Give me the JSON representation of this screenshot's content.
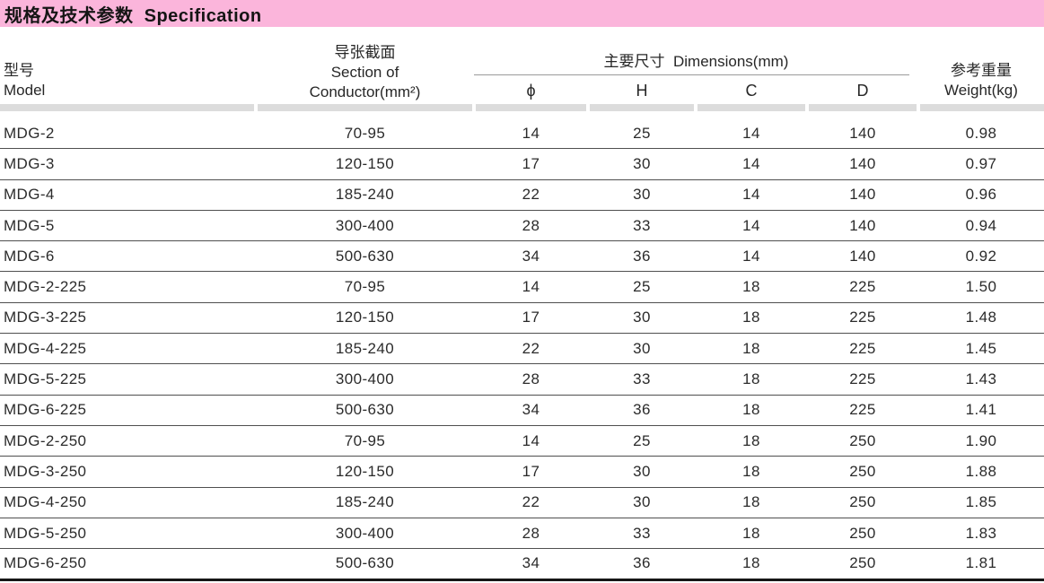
{
  "title_bar": {
    "text": "规格及技术参数  Specification"
  },
  "table": {
    "header": {
      "model": {
        "zh": "型号",
        "en": "Model"
      },
      "section": {
        "zh": "导张截面",
        "en_line1": "Section of",
        "en_line2": "Conductor(mm²)"
      },
      "dimensions": {
        "group_label": "主要尺寸  Dimensions(mm)",
        "sub": [
          "ϕ",
          "H",
          "C",
          "D"
        ]
      },
      "weight": {
        "zh": "参考重量",
        "en": "Weight(kg)"
      }
    },
    "rows": [
      {
        "model": "MDG-2",
        "section": "70-95",
        "phi": "14",
        "h": "25",
        "c": "14",
        "d": "140",
        "weight": "0.98"
      },
      {
        "model": "MDG-3",
        "section": "120-150",
        "phi": "17",
        "h": "30",
        "c": "14",
        "d": "140",
        "weight": "0.97"
      },
      {
        "model": "MDG-4",
        "section": "185-240",
        "phi": "22",
        "h": "30",
        "c": "14",
        "d": "140",
        "weight": "0.96"
      },
      {
        "model": "MDG-5",
        "section": "300-400",
        "phi": "28",
        "h": "33",
        "c": "14",
        "d": "140",
        "weight": "0.94"
      },
      {
        "model": "MDG-6",
        "section": "500-630",
        "phi": "34",
        "h": "36",
        "c": "14",
        "d": "140",
        "weight": "0.92"
      },
      {
        "model": "MDG-2-225",
        "section": "70-95",
        "phi": "14",
        "h": "25",
        "c": "18",
        "d": "225",
        "weight": "1.50"
      },
      {
        "model": "MDG-3-225",
        "section": "120-150",
        "phi": "17",
        "h": "30",
        "c": "18",
        "d": "225",
        "weight": "1.48"
      },
      {
        "model": "MDG-4-225",
        "section": "185-240",
        "phi": "22",
        "h": "30",
        "c": "18",
        "d": "225",
        "weight": "1.45"
      },
      {
        "model": "MDG-5-225",
        "section": "300-400",
        "phi": "28",
        "h": "33",
        "c": "18",
        "d": "225",
        "weight": "1.43"
      },
      {
        "model": "MDG-6-225",
        "section": "500-630",
        "phi": "34",
        "h": "36",
        "c": "18",
        "d": "225",
        "weight": "1.41"
      },
      {
        "model": "MDG-2-250",
        "section": "70-95",
        "phi": "14",
        "h": "25",
        "c": "18",
        "d": "250",
        "weight": "1.90"
      },
      {
        "model": "MDG-3-250",
        "section": "120-150",
        "phi": "17",
        "h": "30",
        "c": "18",
        "d": "250",
        "weight": "1.88"
      },
      {
        "model": "MDG-4-250",
        "section": "185-240",
        "phi": "22",
        "h": "30",
        "c": "18",
        "d": "250",
        "weight": "1.85"
      },
      {
        "model": "MDG-5-250",
        "section": "300-400",
        "phi": "28",
        "h": "33",
        "c": "18",
        "d": "250",
        "weight": "1.83"
      },
      {
        "model": "MDG-6-250",
        "section": "500-630",
        "phi": "34",
        "h": "36",
        "c": "18",
        "d": "250",
        "weight": "1.81"
      }
    ]
  },
  "colors": {
    "header_bar_pink": "#FBB5DB",
    "divider_gray": "#DCDCDC",
    "row_line": "#4F4F4F",
    "bottom_border": "#161616",
    "text": "#272727",
    "rule_gray": "#9A9A9A"
  }
}
